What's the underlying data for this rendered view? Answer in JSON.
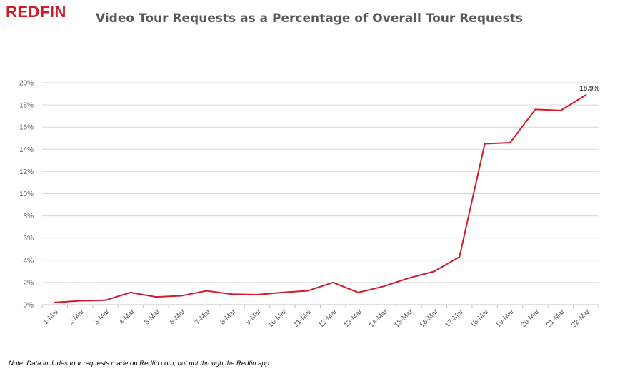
{
  "logo": "REDFIN",
  "note": "Note: Data includes tour requests made on Redfin.com, but not through the Redfin app.",
  "colors": {
    "line": "#d11a2a",
    "grid": "#d9d9d9",
    "text": "#595959"
  },
  "chart_data": {
    "type": "line",
    "title": "Video Tour Requests as a Percentage of Overall Tour Requests",
    "xlabel": "",
    "ylabel": "",
    "categories": [
      "1-Mar",
      "2-Mar",
      "3-Mar",
      "4-Mar",
      "5-Mar",
      "6-Mar",
      "7-Mar",
      "8-Mar",
      "9-Mar",
      "10-Mar",
      "11-Mar",
      "12-Mar",
      "13-Mar",
      "14-Mar",
      "15-Mar",
      "16-Mar",
      "17-Mar",
      "18-Mar",
      "19-Mar",
      "20-Mar",
      "21-Mar",
      "22-Mar"
    ],
    "series": [
      {
        "values": [
          0.2,
          0.35,
          0.4,
          1.1,
          0.7,
          0.8,
          1.25,
          0.95,
          0.9,
          1.1,
          1.25,
          2.0,
          1.1,
          1.65,
          2.4,
          3.0,
          4.3,
          14.5,
          14.6,
          17.6,
          17.5,
          18.9
        ]
      }
    ],
    "ylim": [
      0,
      20
    ],
    "yticks": [
      0,
      2,
      4,
      6,
      8,
      10,
      12,
      14,
      16,
      18,
      20
    ],
    "ytick_labels": [
      "0%",
      "2%",
      "4%",
      "6%",
      "8%",
      "10%",
      "12%",
      "14%",
      "16%",
      "18%",
      "20%"
    ],
    "grid": true,
    "legend": "none",
    "annotations": [
      {
        "index": 21,
        "text": "18.9%"
      }
    ]
  }
}
